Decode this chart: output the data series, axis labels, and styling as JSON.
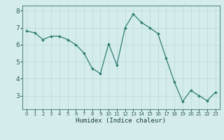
{
  "x": [
    0,
    1,
    2,
    3,
    4,
    5,
    6,
    7,
    8,
    9,
    10,
    11,
    12,
    13,
    14,
    15,
    16,
    17,
    18,
    19,
    20,
    21,
    22,
    23
  ],
  "y": [
    6.8,
    6.7,
    6.3,
    6.5,
    6.5,
    6.3,
    6.0,
    5.5,
    4.6,
    4.3,
    6.05,
    4.8,
    7.0,
    7.8,
    7.3,
    7.0,
    6.65,
    5.2,
    3.8,
    2.65,
    3.3,
    3.0,
    2.7,
    3.2
  ],
  "xlabel": "Humidex (Indice chaleur)",
  "ylim": [
    2.2,
    8.3
  ],
  "xlim": [
    -0.5,
    23.5
  ],
  "yticks": [
    3,
    4,
    5,
    6,
    7,
    8
  ],
  "xticks": [
    0,
    1,
    2,
    3,
    4,
    5,
    6,
    7,
    8,
    9,
    10,
    11,
    12,
    13,
    14,
    15,
    16,
    17,
    18,
    19,
    20,
    21,
    22,
    23
  ],
  "line_color": "#2e7d72",
  "marker_color": "#2e7d72",
  "bg_color": "#d4edec",
  "grid_color": "#b8d8d6",
  "axis_color": "#5a8a88",
  "tick_color": "#2e5a5a",
  "label_color": "#1a3a3a"
}
